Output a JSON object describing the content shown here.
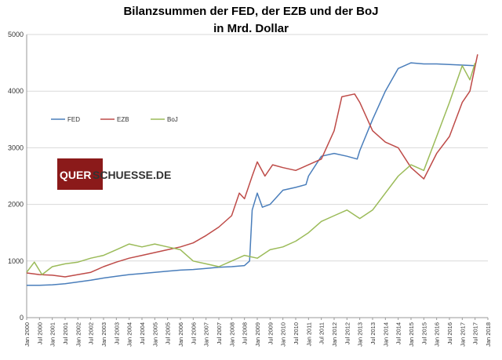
{
  "chart_data": {
    "type": "line",
    "title": "Bilanzsummen der FED, der EZB und der BoJ",
    "subtitle": "in Mrd. Dollar",
    "xlabel": "",
    "ylabel": "",
    "ylim": [
      0,
      5000
    ],
    "yticks": [
      "0",
      "1000",
      "2000",
      "3000",
      "4000",
      "5000"
    ],
    "xtick_labels": [
      "Jan 2000",
      "Jul 2000",
      "Jan 2001",
      "Jul 2001",
      "Jan 2002",
      "Jul 2002",
      "Jan 2003",
      "Jul 2003",
      "Jan 2004",
      "Jul 2004",
      "Jan 2005",
      "Jul 2005",
      "Jan 2006",
      "Jul 2006",
      "Jan 2007",
      "Jul 2007",
      "Jan 2008",
      "Jul 2008",
      "Jan 2009",
      "Jul 2009",
      "Jan 2010",
      "Jul 2010",
      "Jan 2011",
      "Jul 2011",
      "Jan 2012",
      "Jul 2012",
      "Jan 2013",
      "Jul 2013",
      "Jan 2014",
      "Jul 2014",
      "Jan 2015",
      "Jul 2015",
      "Jan 2016",
      "Jul 2016",
      "Jan 2017",
      "Jul 2017",
      "Jan 2018"
    ],
    "grid": "horizontal",
    "legend_position": "left-inside",
    "series": [
      {
        "name": "FED",
        "color": "#4a7ebb",
        "points": [
          [
            2000.0,
            570
          ],
          [
            2000.5,
            570
          ],
          [
            2001.0,
            580
          ],
          [
            2001.5,
            600
          ],
          [
            2002.0,
            630
          ],
          [
            2002.5,
            660
          ],
          [
            2003.0,
            700
          ],
          [
            2003.5,
            730
          ],
          [
            2004.0,
            760
          ],
          [
            2004.5,
            780
          ],
          [
            2005.0,
            800
          ],
          [
            2005.5,
            820
          ],
          [
            2006.0,
            840
          ],
          [
            2006.5,
            850
          ],
          [
            2007.0,
            870
          ],
          [
            2007.5,
            890
          ],
          [
            2008.0,
            900
          ],
          [
            2008.5,
            920
          ],
          [
            2008.7,
            1000
          ],
          [
            2008.8,
            1900
          ],
          [
            2009.0,
            2200
          ],
          [
            2009.2,
            1950
          ],
          [
            2009.5,
            2000
          ],
          [
            2010.0,
            2250
          ],
          [
            2010.5,
            2300
          ],
          [
            2010.9,
            2350
          ],
          [
            2011.0,
            2500
          ],
          [
            2011.5,
            2850
          ],
          [
            2012.0,
            2900
          ],
          [
            2012.5,
            2850
          ],
          [
            2012.9,
            2800
          ],
          [
            2013.0,
            2950
          ],
          [
            2013.5,
            3500
          ],
          [
            2014.0,
            4000
          ],
          [
            2014.5,
            4400
          ],
          [
            2015.0,
            4500
          ],
          [
            2015.5,
            4480
          ],
          [
            2016.0,
            4480
          ],
          [
            2016.5,
            4470
          ],
          [
            2017.0,
            4460
          ],
          [
            2017.5,
            4450
          ]
        ]
      },
      {
        "name": "EZB",
        "color": "#be4b48",
        "points": [
          [
            2000.0,
            790
          ],
          [
            2000.5,
            760
          ],
          [
            2001.0,
            750
          ],
          [
            2001.5,
            720
          ],
          [
            2002.0,
            760
          ],
          [
            2002.5,
            800
          ],
          [
            2003.0,
            900
          ],
          [
            2003.5,
            980
          ],
          [
            2004.0,
            1050
          ],
          [
            2004.5,
            1100
          ],
          [
            2005.0,
            1150
          ],
          [
            2005.5,
            1200
          ],
          [
            2006.0,
            1250
          ],
          [
            2006.5,
            1320
          ],
          [
            2007.0,
            1450
          ],
          [
            2007.5,
            1600
          ],
          [
            2008.0,
            1800
          ],
          [
            2008.3,
            2200
          ],
          [
            2008.5,
            2100
          ],
          [
            2008.8,
            2500
          ],
          [
            2009.0,
            2750
          ],
          [
            2009.3,
            2500
          ],
          [
            2009.6,
            2700
          ],
          [
            2010.0,
            2650
          ],
          [
            2010.5,
            2600
          ],
          [
            2011.0,
            2700
          ],
          [
            2011.5,
            2800
          ],
          [
            2012.0,
            3300
          ],
          [
            2012.3,
            3900
          ],
          [
            2012.8,
            3950
          ],
          [
            2013.0,
            3800
          ],
          [
            2013.5,
            3300
          ],
          [
            2014.0,
            3100
          ],
          [
            2014.5,
            3000
          ],
          [
            2015.0,
            2650
          ],
          [
            2015.5,
            2450
          ],
          [
            2016.0,
            2900
          ],
          [
            2016.5,
            3200
          ],
          [
            2017.0,
            3800
          ],
          [
            2017.3,
            4000
          ],
          [
            2017.6,
            4650
          ]
        ]
      },
      {
        "name": "BoJ",
        "color": "#9bbb59",
        "points": [
          [
            2000.0,
            800
          ],
          [
            2000.3,
            980
          ],
          [
            2000.6,
            760
          ],
          [
            2001.0,
            900
          ],
          [
            2001.5,
            950
          ],
          [
            2002.0,
            980
          ],
          [
            2002.5,
            1050
          ],
          [
            2003.0,
            1100
          ],
          [
            2003.5,
            1200
          ],
          [
            2004.0,
            1300
          ],
          [
            2004.5,
            1250
          ],
          [
            2005.0,
            1300
          ],
          [
            2005.5,
            1250
          ],
          [
            2006.0,
            1200
          ],
          [
            2006.5,
            1000
          ],
          [
            2007.0,
            950
          ],
          [
            2007.5,
            900
          ],
          [
            2008.0,
            1000
          ],
          [
            2008.5,
            1100
          ],
          [
            2009.0,
            1050
          ],
          [
            2009.5,
            1200
          ],
          [
            2010.0,
            1250
          ],
          [
            2010.5,
            1350
          ],
          [
            2011.0,
            1500
          ],
          [
            2011.5,
            1700
          ],
          [
            2012.0,
            1800
          ],
          [
            2012.5,
            1900
          ],
          [
            2013.0,
            1750
          ],
          [
            2013.5,
            1900
          ],
          [
            2014.0,
            2200
          ],
          [
            2014.5,
            2500
          ],
          [
            2015.0,
            2700
          ],
          [
            2015.5,
            2600
          ],
          [
            2016.0,
            3200
          ],
          [
            2016.5,
            3800
          ],
          [
            2017.0,
            4450
          ],
          [
            2017.3,
            4200
          ],
          [
            2017.5,
            4500
          ]
        ]
      }
    ]
  },
  "logo": {
    "text_part1": "QUER",
    "text_part2": "SCHUESSE.DE",
    "color": "#8b1a1a"
  }
}
